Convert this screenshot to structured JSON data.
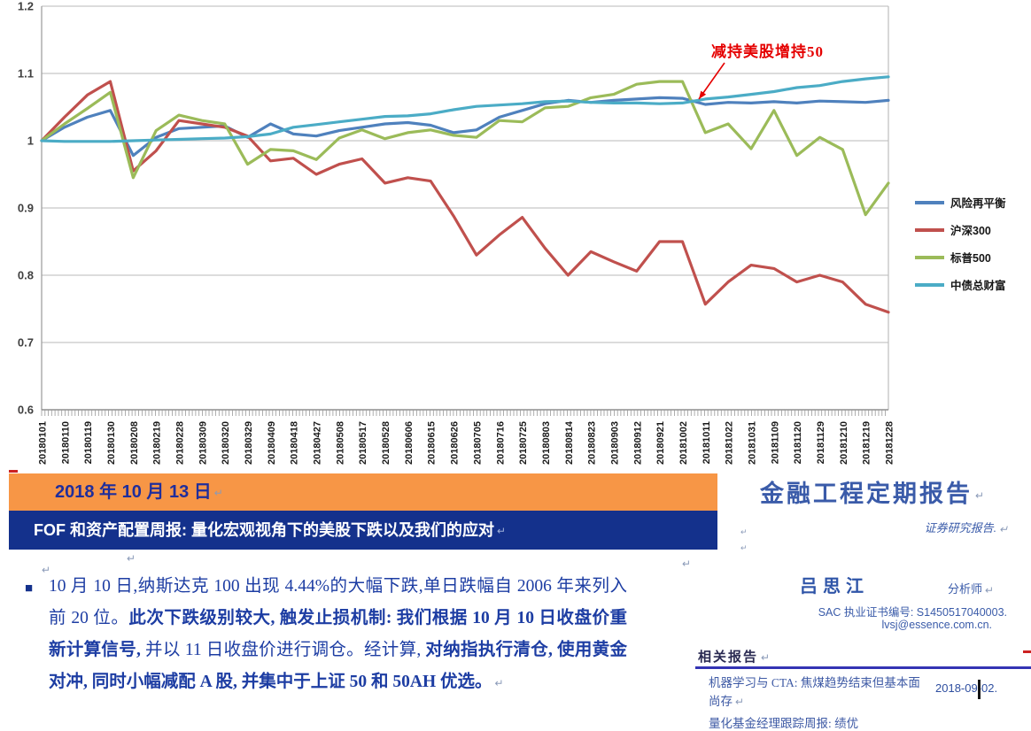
{
  "pilcrow": "↵",
  "bullet": "■",
  "chart_data": {
    "type": "line",
    "title": "",
    "xlabel": "",
    "ylabel": "",
    "ylim": [
      0.6,
      1.2
    ],
    "grid": true,
    "legend_position": "right",
    "yticks": [
      "1.2",
      "1.1",
      "1",
      "0.9",
      "0.8",
      "0.7",
      "0.6"
    ],
    "x_labels": [
      "20180101",
      "20180110",
      "20180119",
      "20180130",
      "20180208",
      "20180219",
      "20180228",
      "20180309",
      "20180320",
      "20180329",
      "20180409",
      "20180418",
      "20180427",
      "20180508",
      "20180517",
      "20180528",
      "20180606",
      "20180615",
      "20180626",
      "20180705",
      "20180716",
      "20180725",
      "20180803",
      "20180814",
      "20180823",
      "20180903",
      "20180912",
      "20180921",
      "20181002",
      "20181011",
      "20181022",
      "20181031",
      "20181109",
      "20181120",
      "20181129",
      "20181210",
      "20181219",
      "20181228"
    ],
    "series": [
      {
        "name": "风险再平衡",
        "id": "risk-rebalance",
        "color": "#4F81BD",
        "values": [
          1.0,
          1.02,
          1.035,
          1.045,
          0.978,
          1.005,
          1.018,
          1.02,
          1.022,
          1.005,
          1.025,
          1.01,
          1.007,
          1.015,
          1.02,
          1.025,
          1.027,
          1.023,
          1.012,
          1.016,
          1.035,
          1.045,
          1.055,
          1.06,
          1.057,
          1.06,
          1.062,
          1.064,
          1.063,
          1.054,
          1.057,
          1.056,
          1.058,
          1.056,
          1.059,
          1.058,
          1.057,
          1.06
        ]
      },
      {
        "name": "沪深300",
        "id": "csi300",
        "color": "#C0504D",
        "values": [
          1.0,
          1.035,
          1.068,
          1.088,
          0.955,
          0.985,
          1.03,
          1.025,
          1.02,
          1.007,
          0.97,
          0.974,
          0.95,
          0.965,
          0.973,
          0.937,
          0.945,
          0.94,
          0.888,
          0.83,
          0.86,
          0.886,
          0.84,
          0.8,
          0.835,
          0.82,
          0.806,
          0.85,
          0.85,
          0.757,
          0.79,
          0.815,
          0.81,
          0.79,
          0.8,
          0.79,
          0.757,
          0.745
        ]
      },
      {
        "name": "标普500",
        "id": "sp500",
        "color": "#9BBB59",
        "values": [
          1.0,
          1.025,
          1.048,
          1.072,
          0.945,
          1.015,
          1.038,
          1.03,
          1.025,
          0.965,
          0.987,
          0.985,
          0.972,
          1.004,
          1.016,
          1.003,
          1.012,
          1.016,
          1.008,
          1.005,
          1.03,
          1.028,
          1.049,
          1.051,
          1.064,
          1.069,
          1.084,
          1.088,
          1.088,
          1.012,
          1.025,
          0.988,
          1.045,
          0.978,
          1.005,
          0.987,
          0.89,
          0.937
        ]
      },
      {
        "name": "中债总财富",
        "id": "chinabond-total-wealth",
        "color": "#4BACC6",
        "values": [
          1.0,
          0.999,
          0.999,
          0.999,
          1.0,
          1.001,
          1.002,
          1.003,
          1.004,
          1.006,
          1.01,
          1.02,
          1.024,
          1.028,
          1.032,
          1.036,
          1.037,
          1.04,
          1.046,
          1.051,
          1.053,
          1.055,
          1.058,
          1.059,
          1.057,
          1.056,
          1.056,
          1.055,
          1.056,
          1.062,
          1.065,
          1.069,
          1.073,
          1.079,
          1.082,
          1.088,
          1.092,
          1.095
        ]
      }
    ],
    "annotation": {
      "text": "减持美股增持50",
      "color": "#E50000",
      "arrow_from": [
        818,
        71
      ],
      "arrow_to": [
        789,
        112
      ]
    }
  },
  "masthead": {
    "date": "2018 年 10 月 13 日",
    "title": "FOF 和资产配置周报: 量化宏观视角下的美股下跌以及我们的应对"
  },
  "summary": {
    "segments": [
      {
        "text": "10 月 10 日,纳斯达克 100 出现 4.44%的大幅下跌,单日跌幅自 2006 年来列入前 20 位。",
        "bold": false
      },
      {
        "text": "此次下跌级别较大, 触发止损机制: 我们根据 10 月 10 日收盘价重新计算信号,",
        "bold": true
      },
      {
        "text": " 并以 11 日收盘价进行调仓。经计算,",
        "bold": false
      },
      {
        "text": " 对纳指执行清仓, 使用黄金对冲, 同时小幅减配 A 股, 并集中于上证 50 和 50AH 优选。",
        "bold": true
      }
    ]
  },
  "report": {
    "title": "金融工程定期报告",
    "subtitle": "证券研究报告.",
    "analyst_name": "吕思江",
    "analyst_role": "分析师",
    "sac": "SAC 执业证书编号: S1450517040003.",
    "email": "lvsj@essence.com.cn.",
    "related_heading": "相关报告",
    "related_items": [
      {
        "title": "机器学习与 CTA: 焦煤趋势结束但基本面尚存",
        "date": "2018-09-02."
      },
      {
        "title": "量化基金经理跟踪周报: 绩优",
        "date": ""
      }
    ]
  }
}
